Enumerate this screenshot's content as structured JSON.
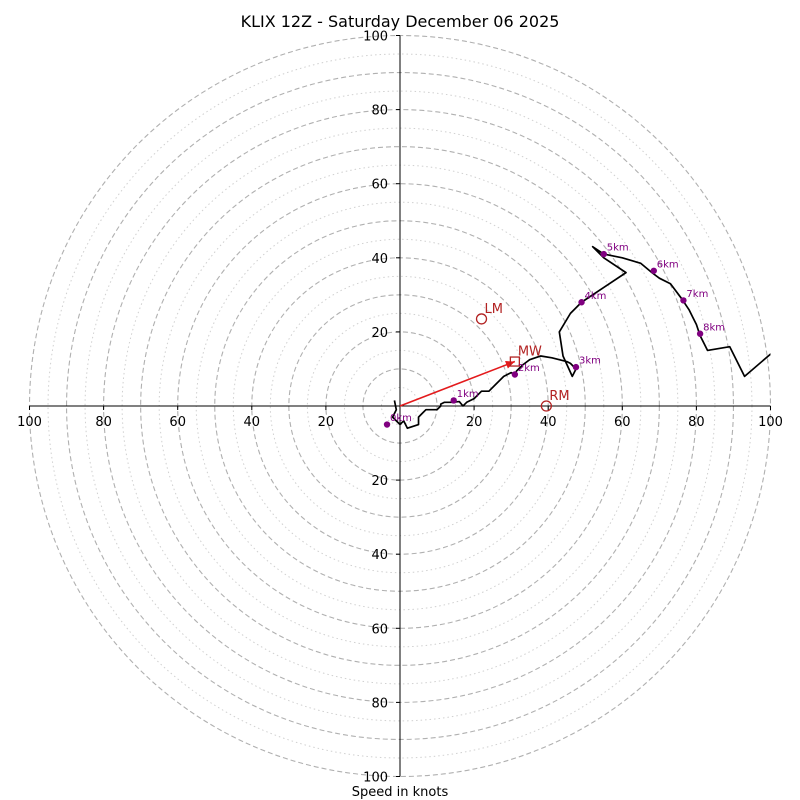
{
  "chart_data": {
    "type": "hodograph",
    "title": "KLIX 12Z - Saturday December 06 2025",
    "xlabel": "Speed in knots",
    "xlim": [
      -100,
      100
    ],
    "ylim": [
      -100,
      100
    ],
    "ring_major": [
      10,
      20,
      30,
      40,
      50,
      60,
      70,
      80,
      90,
      100
    ],
    "ring_minor": [
      5,
      15,
      25,
      35,
      45,
      55,
      65,
      75,
      85,
      95
    ],
    "x_ticks": [
      {
        "value": -100,
        "label": "100"
      },
      {
        "value": -80,
        "label": "80"
      },
      {
        "value": -60,
        "label": "60"
      },
      {
        "value": -40,
        "label": "40"
      },
      {
        "value": -20,
        "label": "20"
      },
      {
        "value": 20,
        "label": "20"
      },
      {
        "value": 40,
        "label": "40"
      },
      {
        "value": 60,
        "label": "60"
      },
      {
        "value": 80,
        "label": "80"
      },
      {
        "value": 100,
        "label": "100"
      }
    ],
    "y_ticks": [
      {
        "value": 100,
        "label": "100"
      },
      {
        "value": 80,
        "label": "80"
      },
      {
        "value": 60,
        "label": "60"
      },
      {
        "value": 40,
        "label": "40"
      },
      {
        "value": 20,
        "label": "20"
      },
      {
        "value": -20,
        "label": "20"
      },
      {
        "value": -40,
        "label": "40"
      },
      {
        "value": -60,
        "label": "60"
      },
      {
        "value": -80,
        "label": "80"
      },
      {
        "value": -100,
        "label": "100"
      }
    ],
    "colors": {
      "trace": "#000000",
      "height_marker": "#800080",
      "motion": "#b22222",
      "mean_wind_arrow": "#e31a1c",
      "ring_major": "#b0b0b0",
      "ring_minor": "#d0d0d0"
    },
    "trace": [
      [
        -1.5,
        1.5
      ],
      [
        -1,
        -1
      ],
      [
        -2,
        -3
      ],
      [
        0,
        -5
      ],
      [
        1,
        -4
      ],
      [
        2,
        -6
      ],
      [
        5,
        -5
      ],
      [
        5,
        -3
      ],
      [
        6,
        -2
      ],
      [
        7,
        -1
      ],
      [
        8,
        -1
      ],
      [
        9,
        -1
      ],
      [
        10,
        -1
      ],
      [
        11,
        0
      ],
      [
        11,
        0.5
      ],
      [
        12,
        1
      ],
      [
        14,
        1
      ],
      [
        16,
        1.2
      ],
      [
        17,
        0
      ],
      [
        18,
        1
      ],
      [
        20,
        2
      ],
      [
        22,
        4
      ],
      [
        24,
        4
      ],
      [
        26,
        6
      ],
      [
        28,
        8
      ],
      [
        30,
        9
      ],
      [
        31,
        8.5
      ],
      [
        31.5,
        9.5
      ],
      [
        33,
        11
      ],
      [
        35,
        12.5
      ],
      [
        38,
        13.5
      ],
      [
        41,
        13
      ],
      [
        43,
        12.5
      ],
      [
        45,
        12
      ],
      [
        46,
        11.5
      ],
      [
        47,
        10.5
      ],
      [
        47.5,
        10
      ],
      [
        46.5,
        8
      ],
      [
        44,
        13.5
      ],
      [
        43,
        20
      ],
      [
        46,
        25
      ],
      [
        49,
        28
      ],
      [
        55,
        32
      ],
      [
        61,
        36
      ],
      [
        55,
        40
      ],
      [
        52,
        43
      ],
      [
        55,
        41
      ],
      [
        60,
        40
      ],
      [
        65,
        38.5
      ],
      [
        68,
        36
      ],
      [
        70,
        34.5
      ],
      [
        73,
        33
      ],
      [
        76,
        29
      ],
      [
        78,
        26
      ],
      [
        79,
        24
      ],
      [
        80,
        22
      ],
      [
        81,
        19
      ],
      [
        83,
        15
      ],
      [
        89,
        16
      ],
      [
        93,
        8
      ],
      [
        100,
        14
      ],
      [
        101,
        14
      ]
    ],
    "height_markers": [
      {
        "label": "0km",
        "u": -3.5,
        "v": -5
      },
      {
        "label": "1km",
        "u": 14.5,
        "v": 1.5
      },
      {
        "label": "2km",
        "u": 31,
        "v": 8.5
      },
      {
        "label": "3km",
        "u": 47.5,
        "v": 10.5
      },
      {
        "label": "4km",
        "u": 49,
        "v": 28
      },
      {
        "label": "5km",
        "u": 55,
        "v": 41
      },
      {
        "label": "6km",
        "u": 68.5,
        "v": 36.5
      },
      {
        "label": "7km",
        "u": 76.5,
        "v": 28.5
      },
      {
        "label": "8km",
        "u": 81,
        "v": 19.5
      }
    ],
    "storm_motions": [
      {
        "label": "LM",
        "u": 22,
        "v": 23.5,
        "shape": "circle"
      },
      {
        "label": "MW",
        "u": 31,
        "v": 12,
        "shape": "square"
      },
      {
        "label": "RM",
        "u": 39.5,
        "v": 0,
        "shape": "circle"
      }
    ],
    "mean_wind_vector": {
      "from": [
        0,
        0
      ],
      "to": [
        31,
        12
      ]
    }
  }
}
